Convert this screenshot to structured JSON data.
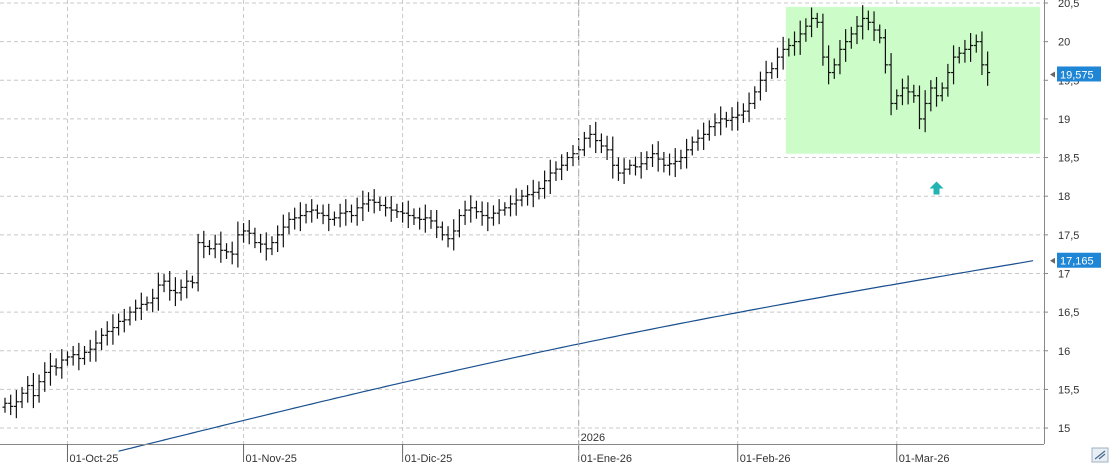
{
  "colors": {
    "background": "#ffffff",
    "grid": "#c8c8c8",
    "bar": "#111111",
    "moving_average": "#1a4f8f",
    "zone_fill": "#ccfcc8",
    "arrow": "#22b3b3",
    "price_tag": "#1f86d6",
    "axis_text": "#333333"
  },
  "chart_data": {
    "type": "ohlc-bar",
    "ylim": [
      14.8,
      20.5
    ],
    "y_ticks": [
      15,
      15.5,
      16,
      16.5,
      17,
      17.5,
      18,
      18.5,
      19,
      19.5,
      20,
      20.5
    ],
    "y_tick_labels": [
      "15",
      "15,5",
      "16",
      "16,5",
      "17",
      "17,5",
      "18",
      "18,5",
      "19",
      "19,5",
      "20",
      "20,5"
    ],
    "x_labels": [
      "01-Oct-25",
      "01-Nov-25",
      "01-Dic-25",
      "01-Ene-26",
      "01-Feb-26",
      "01-Mar-26"
    ],
    "x_label_index": [
      11,
      42,
      70,
      101,
      129,
      157
    ],
    "year_label": "2026",
    "year_label_index": 101,
    "last_price_label": "19,575",
    "last_price": 19.575,
    "ma_value_label": "17,165",
    "ma_value": 17.165,
    "moving_average": {
      "start_index": 20,
      "start_value": 14.7,
      "end_index": 181,
      "end_value": 17.165
    },
    "highlight_zone": {
      "start_index": 138,
      "end_index": 181,
      "low": 18.55,
      "high": 20.45
    },
    "arrow": {
      "index": 164,
      "value": 18.1,
      "direction": "up"
    },
    "closes": [
      15.32,
      15.28,
      15.34,
      15.45,
      15.55,
      15.42,
      15.6,
      15.72,
      15.8,
      15.78,
      15.88,
      15.92,
      15.95,
      15.9,
      15.98,
      16.02,
      16.1,
      16.2,
      16.25,
      16.3,
      16.38,
      16.4,
      16.5,
      16.55,
      16.6,
      16.62,
      16.68,
      16.85,
      16.9,
      16.78,
      16.75,
      16.82,
      16.9,
      16.88,
      17.4,
      17.35,
      17.32,
      17.38,
      17.3,
      17.28,
      17.25,
      17.5,
      17.55,
      17.52,
      17.4,
      17.38,
      17.32,
      17.4,
      17.5,
      17.6,
      17.7,
      17.72,
      17.75,
      17.8,
      17.82,
      17.78,
      17.75,
      17.7,
      17.72,
      17.78,
      17.8,
      17.75,
      17.85,
      17.9,
      17.95,
      17.92,
      17.88,
      17.85,
      17.82,
      17.8,
      17.78,
      17.75,
      17.72,
      17.7,
      17.72,
      17.68,
      17.6,
      17.5,
      17.45,
      17.55,
      17.75,
      17.82,
      17.85,
      17.8,
      17.75,
      17.72,
      17.78,
      17.82,
      17.85,
      17.9,
      17.95,
      18.0,
      18.02,
      18.05,
      18.1,
      18.2,
      18.3,
      18.35,
      18.4,
      18.5,
      18.55,
      18.6,
      18.75,
      18.8,
      18.72,
      18.65,
      18.6,
      18.4,
      18.3,
      18.35,
      18.4,
      18.38,
      18.42,
      18.5,
      18.55,
      18.48,
      18.4,
      18.42,
      18.45,
      18.5,
      18.6,
      18.7,
      18.75,
      18.8,
      18.9,
      18.95,
      19.0,
      18.98,
      19.02,
      19.05,
      19.1,
      19.2,
      19.35,
      19.5,
      19.6,
      19.65,
      19.8,
      19.9,
      19.95,
      20.0,
      20.1,
      20.2,
      20.3,
      20.25,
      19.8,
      19.6,
      19.7,
      19.9,
      20.0,
      20.1,
      20.2,
      20.3,
      20.25,
      20.15,
      20.05,
      19.7,
      19.2,
      19.3,
      19.4,
      19.35,
      19.3,
      19.0,
      19.2,
      19.4,
      19.3,
      19.4,
      19.6,
      19.8,
      19.85,
      19.9,
      19.95,
      20.0,
      19.7,
      19.6
    ]
  }
}
